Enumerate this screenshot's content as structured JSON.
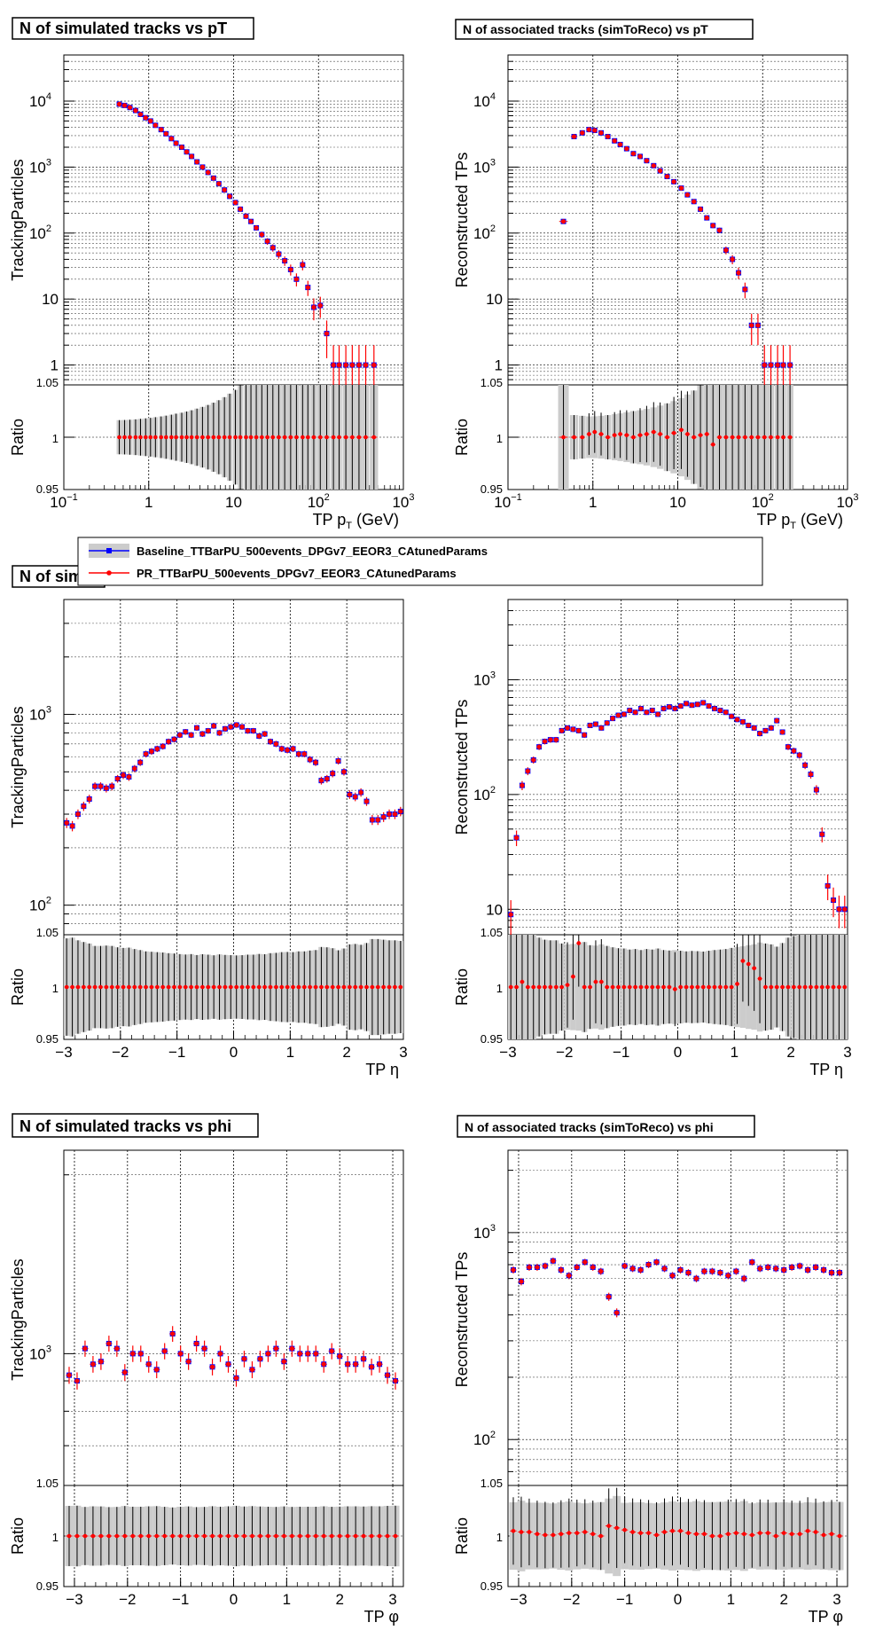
{
  "legend": {
    "entries": [
      {
        "label": "Baseline_TTBarPU_500events_DPGv7_EEOR3_CAtunedParams",
        "color": "#0000ff",
        "marker": "square"
      },
      {
        "label": "PR_TTBarPU_500events_DPGv7_EEOR3_CAtunedParams",
        "color": "#ff0000",
        "marker": "circle"
      }
    ]
  },
  "colors": {
    "baseline": "#0000ff",
    "pr": "#ff0000",
    "band": "#cccccc",
    "grid": "#000000"
  },
  "ratio_label": "Ratio",
  "chart_data": [
    {
      "id": "sim_pt",
      "type": "scatter",
      "title": "N of simulated tracks vs pT",
      "ylabel": "TrackingParticles",
      "xlabel_parts": [
        "TP p",
        "T",
        " (GeV)"
      ],
      "xscale": "log",
      "xlim": [
        0.1,
        1000
      ],
      "yscale": "log",
      "ylim": [
        0.5,
        50000
      ],
      "ratio_ylim": [
        0.95,
        1.05
      ],
      "x_ticks": [
        {
          "v": 0.1,
          "base": "10",
          "exp": "−1"
        },
        {
          "v": 1,
          "base": "1"
        },
        {
          "v": 10,
          "base": "10"
        },
        {
          "v": 100,
          "base": "10",
          "exp": "2"
        },
        {
          "v": 1000,
          "base": "10",
          "exp": "3"
        }
      ],
      "y_ticks": [
        {
          "v": 1,
          "base": "1"
        },
        {
          "v": 10,
          "base": "10"
        },
        {
          "v": 100,
          "base": "10",
          "exp": "2"
        },
        {
          "v": 1000,
          "base": "10",
          "exp": "3"
        },
        {
          "v": 10000,
          "base": "10",
          "exp": "4"
        }
      ],
      "ratio_ticks": [
        "0.95",
        "1",
        "1.05"
      ],
      "x": [
        0.45,
        0.52,
        0.6,
        0.7,
        0.8,
        0.92,
        1.05,
        1.2,
        1.4,
        1.6,
        1.85,
        2.1,
        2.45,
        2.8,
        3.2,
        3.7,
        4.3,
        5,
        5.8,
        6.7,
        7.8,
        9,
        10.5,
        12,
        14,
        16,
        18.5,
        21.5,
        25,
        29,
        34,
        40,
        47,
        55,
        65,
        75,
        88,
        105,
        125,
        150,
        175,
        210,
        250,
        300,
        360,
        450
      ],
      "y": [
        9000,
        8600,
        8000,
        7200,
        6300,
        5600,
        5000,
        4300,
        3700,
        3200,
        2700,
        2300,
        2000,
        1700,
        1450,
        1200,
        1000,
        830,
        680,
        560,
        450,
        360,
        290,
        230,
        180,
        150,
        120,
        95,
        75,
        60,
        48,
        38,
        28,
        20,
        33,
        15,
        7.5,
        8,
        3,
        1,
        1,
        1,
        1,
        1,
        1,
        1
      ],
      "ratio": [
        1,
        1,
        1,
        1,
        1,
        1,
        1,
        1,
        1,
        1,
        1,
        1,
        1,
        1,
        1,
        1,
        1,
        1,
        1,
        1,
        1,
        1,
        1,
        1,
        1,
        1,
        1,
        1,
        1,
        1,
        1,
        1,
        1,
        1,
        1,
        1,
        1,
        1,
        1,
        1,
        1,
        1,
        1,
        1,
        1,
        1
      ]
    },
    {
      "id": "assoc_pt",
      "type": "scatter",
      "title": "N of associated tracks (simToReco) vs pT",
      "ylabel": "Reconstructed TPs",
      "xlabel_parts": [
        "TP p",
        "T",
        " (GeV)"
      ],
      "xscale": "log",
      "xlim": [
        0.1,
        1000
      ],
      "yscale": "log",
      "ylim": [
        0.5,
        50000
      ],
      "ratio_ylim": [
        0.95,
        1.05
      ],
      "x_ticks": [
        {
          "v": 0.1,
          "base": "10",
          "exp": "−1"
        },
        {
          "v": 1,
          "base": "1"
        },
        {
          "v": 10,
          "base": "10"
        },
        {
          "v": 100,
          "base": "10",
          "exp": "2"
        },
        {
          "v": 1000,
          "base": "10",
          "exp": "3"
        }
      ],
      "y_ticks": [
        {
          "v": 1,
          "base": "1"
        },
        {
          "v": 10,
          "base": "10"
        },
        {
          "v": 100,
          "base": "10",
          "exp": "2"
        },
        {
          "v": 1000,
          "base": "10",
          "exp": "3"
        },
        {
          "v": 10000,
          "base": "10",
          "exp": "4"
        }
      ],
      "ratio_ticks": [
        "0.95",
        "1",
        "1.05"
      ],
      "x": [
        0.45,
        0.6,
        0.75,
        0.9,
        1.05,
        1.25,
        1.5,
        1.8,
        2.1,
        2.5,
        3,
        3.6,
        4.3,
        5.2,
        6.2,
        7.5,
        9,
        11,
        13,
        15.5,
        18.5,
        22,
        26,
        31,
        37,
        44,
        52,
        62,
        74,
        88,
        105,
        125,
        150,
        175,
        210
      ],
      "y": [
        150,
        2900,
        3300,
        3700,
        3600,
        3300,
        2900,
        2500,
        2200,
        1900,
        1600,
        1450,
        1250,
        1050,
        880,
        720,
        600,
        480,
        380,
        300,
        230,
        170,
        130,
        110,
        55,
        40,
        25,
        14,
        4,
        4,
        1,
        1,
        1,
        1,
        1
      ],
      "ratio": [
        1,
        1,
        1,
        1.003,
        1.005,
        1.003,
        1,
        1.002,
        1.003,
        1.002,
        1,
        1.002,
        1.003,
        1.005,
        1.003,
        1,
        1.004,
        1.007,
        1.003,
        1,
        1.002,
        1.003,
        0.993,
        1,
        1,
        1,
        1,
        1,
        1,
        1,
        1,
        1,
        1,
        1,
        1
      ]
    },
    {
      "id": "sim_eta",
      "type": "scatter",
      "title": "N of sim",
      "ylabel": "TrackingParticles",
      "xlabel_parts": [
        "TP   η"
      ],
      "xscale": "linear",
      "xlim": [
        -3,
        3
      ],
      "yscale": "log",
      "ylim": [
        70,
        4000
      ],
      "ratio_ylim": [
        0.95,
        1.05
      ],
      "x_ticks": [
        {
          "v": -3,
          "base": "−3"
        },
        {
          "v": -2,
          "base": "−2"
        },
        {
          "v": -1,
          "base": "−1"
        },
        {
          "v": 0,
          "base": "0"
        },
        {
          "v": 1,
          "base": "1"
        },
        {
          "v": 2,
          "base": "2"
        },
        {
          "v": 3,
          "base": "3"
        }
      ],
      "y_ticks": [
        {
          "v": 100,
          "base": "10",
          "exp": "2"
        },
        {
          "v": 1000,
          "base": "10",
          "exp": "3"
        }
      ],
      "ratio_ticks": [
        "0.95",
        "1",
        "1.05"
      ],
      "x": [
        -2.95,
        -2.85,
        -2.75,
        -2.65,
        -2.55,
        -2.45,
        -2.35,
        -2.25,
        -2.15,
        -2.05,
        -1.95,
        -1.85,
        -1.75,
        -1.65,
        -1.55,
        -1.45,
        -1.35,
        -1.25,
        -1.15,
        -1.05,
        -0.95,
        -0.85,
        -0.75,
        -0.65,
        -0.55,
        -0.45,
        -0.35,
        -0.25,
        -0.15,
        -0.05,
        0.05,
        0.15,
        0.25,
        0.35,
        0.45,
        0.55,
        0.65,
        0.75,
        0.85,
        0.95,
        1.05,
        1.15,
        1.25,
        1.35,
        1.45,
        1.55,
        1.65,
        1.75,
        1.85,
        1.95,
        2.05,
        2.15,
        2.25,
        2.35,
        2.45,
        2.55,
        2.65,
        2.75,
        2.85,
        2.95
      ],
      "y": [
        270,
        260,
        300,
        330,
        360,
        420,
        420,
        410,
        420,
        460,
        480,
        470,
        520,
        560,
        620,
        640,
        660,
        680,
        720,
        740,
        780,
        810,
        780,
        850,
        790,
        820,
        870,
        800,
        840,
        860,
        880,
        860,
        820,
        820,
        770,
        790,
        720,
        700,
        660,
        650,
        660,
        620,
        620,
        580,
        560,
        450,
        460,
        490,
        570,
        500,
        380,
        370,
        390,
        350,
        280,
        280,
        290,
        300,
        300,
        310
      ],
      "ratio": [
        1,
        1,
        1,
        1,
        1,
        1,
        1,
        1,
        1,
        1,
        1,
        1,
        1,
        1,
        1,
        1,
        1,
        1,
        1,
        1,
        1,
        1,
        1,
        1,
        1,
        1,
        1,
        1,
        1,
        1,
        1,
        1,
        1,
        1,
        1,
        1,
        1,
        1,
        1,
        1,
        1,
        1,
        1,
        1,
        1,
        1,
        1,
        1,
        1,
        1,
        1,
        1,
        1,
        1,
        1,
        1,
        1,
        1,
        1,
        1
      ]
    },
    {
      "id": "assoc_eta",
      "type": "scatter",
      "title": "",
      "ylabel": "Reconstructed TPs",
      "xlabel_parts": [
        "TP   η"
      ],
      "xscale": "linear",
      "xlim": [
        -3,
        3
      ],
      "yscale": "log",
      "ylim": [
        6,
        5000
      ],
      "ratio_ylim": [
        0.95,
        1.05
      ],
      "x_ticks": [
        {
          "v": -3,
          "base": "−3"
        },
        {
          "v": -2,
          "base": "−2"
        },
        {
          "v": -1,
          "base": "−1"
        },
        {
          "v": 0,
          "base": "0"
        },
        {
          "v": 1,
          "base": "1"
        },
        {
          "v": 2,
          "base": "2"
        },
        {
          "v": 3,
          "base": "3"
        }
      ],
      "y_ticks": [
        {
          "v": 10,
          "base": "10"
        },
        {
          "v": 100,
          "base": "10",
          "exp": "2"
        },
        {
          "v": 1000,
          "base": "10",
          "exp": "3"
        }
      ],
      "ratio_ticks": [
        "0.95",
        "1",
        "1.05"
      ],
      "x": [
        -2.95,
        -2.85,
        -2.75,
        -2.65,
        -2.55,
        -2.45,
        -2.35,
        -2.25,
        -2.15,
        -2.05,
        -1.95,
        -1.85,
        -1.75,
        -1.65,
        -1.55,
        -1.45,
        -1.35,
        -1.25,
        -1.15,
        -1.05,
        -0.95,
        -0.85,
        -0.75,
        -0.65,
        -0.55,
        -0.45,
        -0.35,
        -0.25,
        -0.15,
        -0.05,
        0.05,
        0.15,
        0.25,
        0.35,
        0.45,
        0.55,
        0.65,
        0.75,
        0.85,
        0.95,
        1.05,
        1.15,
        1.25,
        1.35,
        1.45,
        1.55,
        1.65,
        1.75,
        1.85,
        1.95,
        2.05,
        2.15,
        2.25,
        2.35,
        2.45,
        2.55,
        2.65,
        2.75,
        2.85,
        2.95
      ],
      "y": [
        9,
        42,
        120,
        160,
        200,
        260,
        290,
        300,
        300,
        360,
        380,
        370,
        360,
        330,
        400,
        410,
        380,
        420,
        460,
        490,
        500,
        540,
        520,
        560,
        520,
        540,
        500,
        560,
        580,
        560,
        590,
        620,
        600,
        610,
        630,
        590,
        560,
        540,
        520,
        480,
        450,
        430,
        400,
        380,
        340,
        360,
        380,
        440,
        350,
        260,
        240,
        220,
        180,
        150,
        110,
        45,
        16,
        12,
        10,
        10
      ],
      "ratio": [
        1,
        1,
        1.005,
        1,
        1,
        1,
        1,
        1,
        1,
        1,
        1.002,
        1.01,
        1.042,
        1,
        1,
        1.005,
        1.005,
        1,
        1,
        1,
        1,
        1,
        1,
        1,
        1,
        1,
        1,
        1,
        1,
        0.998,
        1,
        1,
        1,
        1,
        1,
        1,
        1,
        1,
        1,
        1,
        1.003,
        1.025,
        1.022,
        1.018,
        1.008,
        1,
        1,
        1,
        1,
        1,
        1,
        1,
        1,
        1,
        1,
        1,
        1,
        1,
        1,
        1
      ]
    },
    {
      "id": "sim_phi",
      "type": "scatter",
      "title": "N of simulated tracks vs phi",
      "ylabel": "TrackingParticles",
      "xlabel_parts": [
        "TP   φ"
      ],
      "xscale": "linear",
      "xlim": [
        -3.2,
        3.2
      ],
      "yscale": "log",
      "ylim": [
        600,
        2200
      ],
      "ratio_ylim": [
        0.95,
        1.05
      ],
      "x_ticks": [
        {
          "v": -3,
          "base": "−3"
        },
        {
          "v": -2,
          "base": "−2"
        },
        {
          "v": -1,
          "base": "−1"
        },
        {
          "v": 0,
          "base": "0"
        },
        {
          "v": 1,
          "base": "1"
        },
        {
          "v": 2,
          "base": "2"
        },
        {
          "v": 3,
          "base": "3"
        }
      ],
      "y_ticks": [
        {
          "v": 1000,
          "base": "10",
          "exp": "3"
        }
      ],
      "ratio_ticks": [
        "0.95",
        "1",
        "1.05"
      ],
      "x": [
        -3.1,
        -2.95,
        -2.8,
        -2.65,
        -2.5,
        -2.35,
        -2.2,
        -2.05,
        -1.9,
        -1.75,
        -1.6,
        -1.45,
        -1.3,
        -1.15,
        -1.0,
        -0.85,
        -0.7,
        -0.55,
        -0.4,
        -0.25,
        -0.1,
        0.05,
        0.2,
        0.35,
        0.5,
        0.65,
        0.8,
        0.95,
        1.1,
        1.25,
        1.4,
        1.55,
        1.7,
        1.85,
        2.0,
        2.15,
        2.3,
        2.45,
        2.6,
        2.75,
        2.9,
        3.05
      ],
      "y": [
        920,
        900,
        1020,
        960,
        970,
        1040,
        1020,
        930,
        1000,
        1000,
        960,
        940,
        1010,
        1080,
        1000,
        970,
        1040,
        1020,
        950,
        1000,
        960,
        910,
        980,
        940,
        980,
        1000,
        1020,
        970,
        1020,
        1000,
        1000,
        1000,
        960,
        1010,
        990,
        960,
        960,
        980,
        950,
        960,
        920,
        900
      ],
      "ratio": [
        1,
        1,
        1,
        1,
        1,
        1,
        1,
        1,
        1,
        1,
        1,
        1,
        1,
        1,
        1,
        1,
        1,
        1,
        1,
        1,
        1,
        1,
        1,
        1,
        1,
        1,
        1,
        1,
        1,
        1,
        1,
        1,
        1,
        1,
        1,
        1,
        1,
        1,
        1,
        1,
        1,
        1
      ]
    },
    {
      "id": "assoc_phi",
      "type": "scatter",
      "title": "N of associated tracks (simToReco) vs phi",
      "ylabel": "Reconstructed TPs",
      "xlabel_parts": [
        "TP   φ"
      ],
      "xscale": "linear",
      "xlim": [
        -3.2,
        3.2
      ],
      "yscale": "log",
      "ylim": [
        60,
        2500
      ],
      "ratio_ylim": [
        0.95,
        1.05
      ],
      "x_ticks": [
        {
          "v": -3,
          "base": "−3"
        },
        {
          "v": -2,
          "base": "−2"
        },
        {
          "v": -1,
          "base": "−1"
        },
        {
          "v": 0,
          "base": "0"
        },
        {
          "v": 1,
          "base": "1"
        },
        {
          "v": 2,
          "base": "2"
        },
        {
          "v": 3,
          "base": "3"
        }
      ],
      "y_ticks": [
        {
          "v": 100,
          "base": "10",
          "exp": "2"
        },
        {
          "v": 1000,
          "base": "10",
          "exp": "3"
        }
      ],
      "ratio_ticks": [
        "0.95",
        "1",
        "1.05"
      ],
      "x": [
        -3.1,
        -2.95,
        -2.8,
        -2.65,
        -2.5,
        -2.35,
        -2.2,
        -2.05,
        -1.9,
        -1.75,
        -1.6,
        -1.45,
        -1.3,
        -1.15,
        -1.0,
        -0.85,
        -0.7,
        -0.55,
        -0.4,
        -0.25,
        -0.1,
        0.05,
        0.2,
        0.35,
        0.5,
        0.65,
        0.8,
        0.95,
        1.1,
        1.25,
        1.4,
        1.55,
        1.7,
        1.85,
        2.0,
        2.15,
        2.3,
        2.45,
        2.6,
        2.75,
        2.9,
        3.05
      ],
      "y": [
        660,
        580,
        680,
        680,
        690,
        730,
        660,
        620,
        680,
        720,
        680,
        650,
        490,
        410,
        690,
        670,
        660,
        700,
        720,
        670,
        620,
        660,
        640,
        600,
        650,
        650,
        640,
        620,
        650,
        600,
        720,
        670,
        680,
        670,
        660,
        680,
        690,
        660,
        680,
        660,
        640,
        640
      ],
      "ratio": [
        1.005,
        1.004,
        1.004,
        1.002,
        1.001,
        1.001,
        1.002,
        1.003,
        1.003,
        1.004,
        1.002,
        1,
        1.01,
        1.008,
        1.006,
        1.004,
        1.003,
        1.003,
        1.001,
        1.004,
        1.005,
        1.005,
        1.003,
        1.002,
        1.002,
        1,
        1,
        1.002,
        1.003,
        1.002,
        1.001,
        1.003,
        1.003,
        1,
        1.003,
        1.002,
        1.002,
        1.005,
        1.004,
        1.001,
        1.002,
        1
      ]
    }
  ]
}
